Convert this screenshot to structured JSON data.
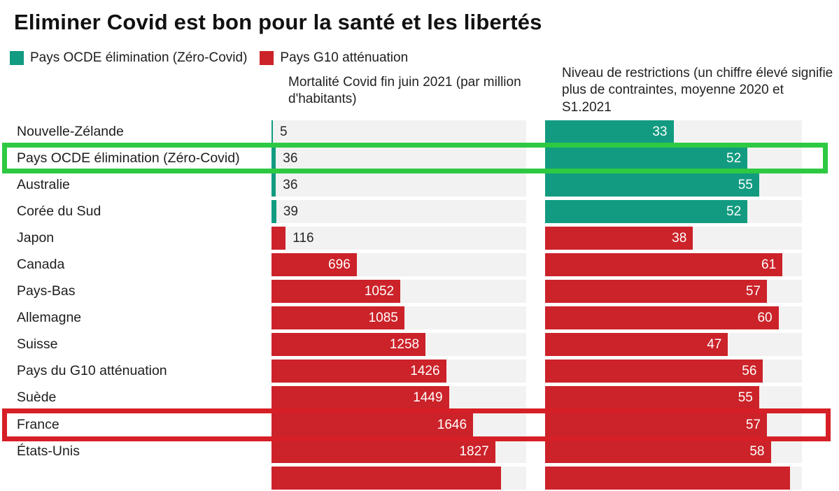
{
  "page": {
    "title": "Eliminer Covid est bon pour la santé et les libertés"
  },
  "legend": {
    "items": [
      {
        "label": "Pays OCDE élimination (Zéro-Covid)",
        "color": "#129b80"
      },
      {
        "label": "Pays G10 atténuation",
        "color": "#cc2229"
      }
    ]
  },
  "chart_data": {
    "type": "bar",
    "orientation": "horizontal",
    "title": "Eliminer Covid est bon pour la santé et les libertés",
    "legend_position": "top",
    "grid": false,
    "colors": {
      "elimination": "#129b80",
      "attenuation": "#cc2229",
      "track": "#f2f2f2",
      "highlight_green": "#2ec943",
      "highlight_red": "#d61f26"
    },
    "columns": [
      {
        "key": "mortality",
        "header": "Mortalité Covid fin juin 2021 (par million d'habitants)",
        "xlim": [
          0,
          2080
        ]
      },
      {
        "key": "restrictions",
        "header": "Niveau de restrictions (un chiffre élevé signifie plus de contraintes, moyenne 2020 et S1.2021",
        "xlim": [
          0,
          66
        ]
      }
    ],
    "rows": [
      {
        "label": "Nouvelle-Zélande",
        "group": "elimination",
        "mortality": 5,
        "restrictions": 33,
        "mortality_value_outside": true
      },
      {
        "label": "Pays OCDE élimination (Zéro-Covid)",
        "group": "elimination",
        "mortality": 36,
        "restrictions": 52,
        "mortality_value_outside": true,
        "highlight": "green"
      },
      {
        "label": "Australie",
        "group": "elimination",
        "mortality": 36,
        "restrictions": 55,
        "mortality_value_outside": true
      },
      {
        "label": "Corée du Sud",
        "group": "elimination",
        "mortality": 39,
        "restrictions": 52,
        "mortality_value_outside": true
      },
      {
        "label": "Japon",
        "group": "attenuation",
        "mortality": 116,
        "restrictions": 38,
        "mortality_value_outside": true
      },
      {
        "label": "Canada",
        "group": "attenuation",
        "mortality": 696,
        "restrictions": 61
      },
      {
        "label": "Pays-Bas",
        "group": "attenuation",
        "mortality": 1052,
        "restrictions": 57
      },
      {
        "label": "Allemagne",
        "group": "attenuation",
        "mortality": 1085,
        "restrictions": 60
      },
      {
        "label": "Suisse",
        "group": "attenuation",
        "mortality": 1258,
        "restrictions": 47
      },
      {
        "label": "Pays du G10 atténuation",
        "group": "attenuation",
        "mortality": 1426,
        "restrictions": 56
      },
      {
        "label": "Suède",
        "group": "attenuation",
        "mortality": 1449,
        "restrictions": 55
      },
      {
        "label": "France",
        "group": "attenuation",
        "mortality": 1646,
        "restrictions": 57,
        "highlight": "red"
      },
      {
        "label": "États-Unis",
        "group": "attenuation",
        "mortality": 1827,
        "restrictions": 58
      },
      {
        "label": "",
        "group": "attenuation",
        "mortality": 1875,
        "restrictions": 63,
        "values_hidden": true,
        "cut_off": true
      }
    ]
  }
}
